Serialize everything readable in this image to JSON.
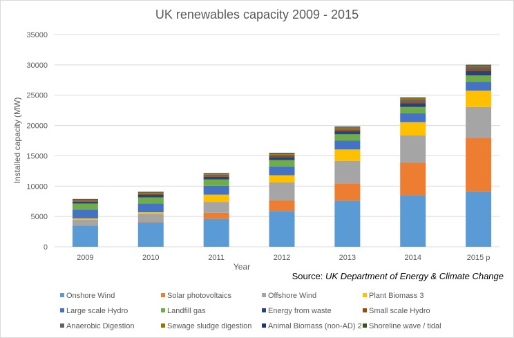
{
  "chart_data": {
    "type": "bar",
    "stacked": true,
    "title": "UK renewables capacity 2009 - 2015",
    "xlabel": "Year",
    "ylabel": "Installed capacity (MW)",
    "ylim": [
      0,
      35000
    ],
    "yticks": [
      0,
      5000,
      10000,
      15000,
      20000,
      25000,
      30000,
      35000
    ],
    "grid": true,
    "legend_position": "bottom",
    "source_prefix": "Source: ",
    "source_name": "UK Department of Energy & Climate Change",
    "categories": [
      "2009",
      "2010",
      "2011",
      "2012",
      "2013",
      "2014",
      "2015 p"
    ],
    "series": [
      {
        "name": "Onshore Wind",
        "color": "#5B9BD5",
        "values": [
          3500,
          4000,
          4600,
          5900,
          7600,
          8500,
          9100
        ]
      },
      {
        "name": "Solar photovoltaics",
        "color": "#ED7D31",
        "values": [
          30,
          100,
          1000,
          1750,
          2850,
          5350,
          8850
        ]
      },
      {
        "name": "Offshore Wind",
        "color": "#A5A5A5",
        "values": [
          950,
          1350,
          1800,
          2950,
          3700,
          4500,
          5100
        ]
      },
      {
        "name": "Plant Biomass 3",
        "color": "#FFC000",
        "values": [
          200,
          250,
          1200,
          1200,
          1900,
          2200,
          2700
        ]
      },
      {
        "name": "Large scale Hydro",
        "color": "#4472C4",
        "values": [
          1450,
          1450,
          1450,
          1450,
          1450,
          1450,
          1450
        ]
      },
      {
        "name": "Landfill gas",
        "color": "#70AD47",
        "values": [
          1000,
          1000,
          1050,
          1050,
          1050,
          1050,
          1050
        ]
      },
      {
        "name": "Energy from waste",
        "color": "#264478",
        "values": [
          300,
          400,
          450,
          500,
          500,
          600,
          750
        ]
      },
      {
        "name": "Small scale Hydro",
        "color": "#9E480E",
        "values": [
          150,
          160,
          180,
          200,
          230,
          250,
          300
        ]
      },
      {
        "name": "Anaerobic Digestion",
        "color": "#636363",
        "values": [
          50,
          100,
          150,
          200,
          250,
          400,
          400
        ]
      },
      {
        "name": "Sewage sludge digestion",
        "color": "#997300",
        "values": [
          150,
          150,
          180,
          200,
          200,
          210,
          220
        ]
      },
      {
        "name": "Animal Biomass (non-AD) 2",
        "color": "#203864",
        "values": [
          100,
          100,
          100,
          100,
          100,
          100,
          100
        ]
      },
      {
        "name": "Shoreline wave / tidal",
        "color": "#375623",
        "values": [
          5,
          5,
          5,
          5,
          5,
          10,
          10
        ]
      }
    ]
  }
}
